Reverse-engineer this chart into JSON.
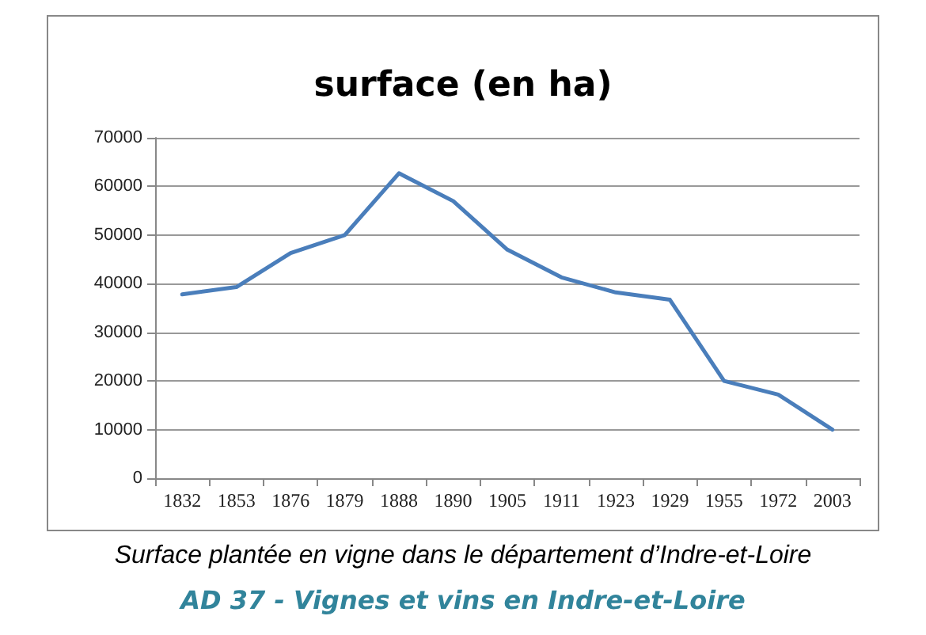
{
  "chart_data": {
    "type": "line",
    "title": "surface (en ha)",
    "categories": [
      "1832",
      "1853",
      "1876",
      "1879",
      "1888",
      "1890",
      "1905",
      "1911",
      "1923",
      "1929",
      "1955",
      "1972",
      "2003"
    ],
    "series": [
      {
        "color": "#4a7ebb",
        "values": [
          37800,
          39300,
          46300,
          50000,
          62700,
          57000,
          47000,
          41300,
          38200,
          36700,
          20000,
          17200,
          10000
        ]
      }
    ],
    "ylim": [
      0,
      70000
    ],
    "yticks": [
      0,
      10000,
      20000,
      30000,
      40000,
      50000,
      60000,
      70000
    ],
    "grid": "y",
    "marker": "none",
    "line_style": "solid",
    "annotations": [
      "Surface plantée en vigne dans le département d’Indre-et-Loire",
      "AD 37 - Vignes et vins en Indre-et-Loire"
    ]
  }
}
